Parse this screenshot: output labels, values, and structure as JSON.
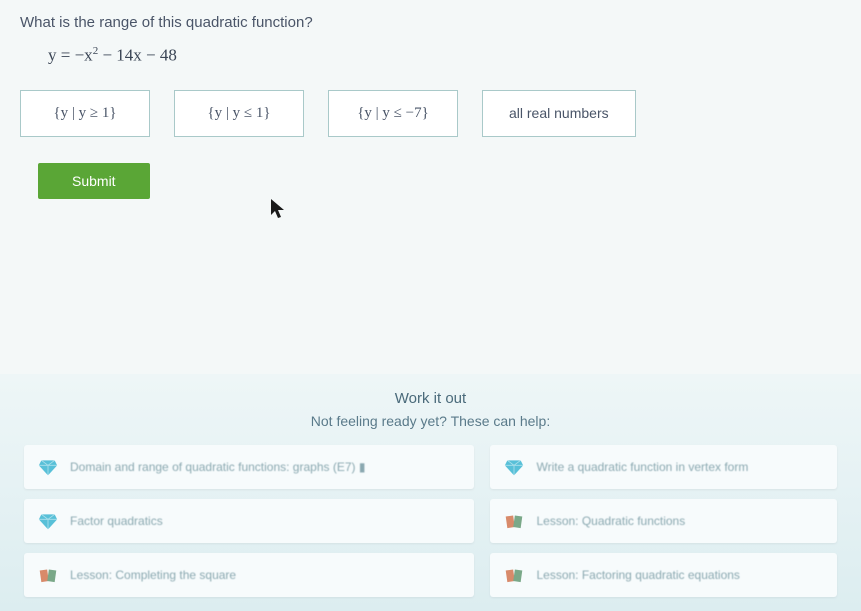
{
  "question": {
    "prompt": "What is the range of this quadratic function?",
    "equation_html": "y = −x<sup>2</sup> − 14x − 48"
  },
  "options": [
    {
      "label": "{y | y ≥ 1}",
      "style": "math"
    },
    {
      "label": "{y | y ≤ 1}",
      "style": "math"
    },
    {
      "label": "{y | y ≤ −7}",
      "style": "math"
    },
    {
      "label": "all real numbers",
      "style": "plain"
    }
  ],
  "submit_label": "Submit",
  "work": {
    "title": "Work it out",
    "subtitle": "Not feeling ready yet? These can help:"
  },
  "help_links": [
    {
      "icon": "gem",
      "text": "Domain and range of quadratic functions: graphs (E7) ▮",
      "col": 0
    },
    {
      "icon": "gem",
      "text": "Write a quadratic function in vertex form",
      "col": 1
    },
    {
      "icon": "gem",
      "text": "Factor quadratics",
      "col": 0
    },
    {
      "icon": "book",
      "text": "Lesson: Quadratic functions",
      "col": 1
    },
    {
      "icon": "book",
      "text": "Lesson: Completing the square",
      "col": 0
    },
    {
      "icon": "book",
      "text": "Lesson: Factoring quadratic equations",
      "col": 1
    }
  ],
  "colors": {
    "bg": "#f4f8f8",
    "option_border": "#a9c9c9",
    "submit_bg": "#5aa636",
    "work_title": "#4a6a7a",
    "help_text": "#8aa8b0",
    "gem": "#58c0d8",
    "book1": "#d88a6a",
    "book2": "#7aa888"
  }
}
